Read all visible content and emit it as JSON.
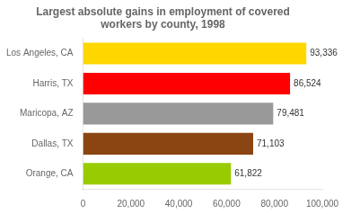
{
  "chart_data": {
    "type": "bar",
    "orientation": "horizontal",
    "title": "Largest absolute gains in employment of covered\nworkers by county, 1998",
    "categories": [
      "Los Angeles, CA",
      "Harris, TX",
      "Maricopa, AZ",
      "Dallas, TX",
      "Orange, CA"
    ],
    "values": [
      93336,
      86524,
      79481,
      71103,
      61822
    ],
    "value_labels": [
      "93,336",
      "86,524",
      "79,481",
      "71,103",
      "61,822"
    ],
    "data_labels": true,
    "colors": [
      "#FFD700",
      "#FF0000",
      "#999999",
      "#8B4513",
      "#99CC00"
    ],
    "xlim": [
      0,
      100000
    ],
    "xticks": [
      0,
      {
        "value": 20000,
        "label": "20,000"
      },
      {
        "value": 40000,
        "label": "40,000"
      },
      {
        "value": 60000,
        "label": "60,000"
      },
      {
        "value": 80000,
        "label": "80,000"
      },
      {
        "value": 100000,
        "label": "100,000"
      }
    ],
    "grid": false
  }
}
